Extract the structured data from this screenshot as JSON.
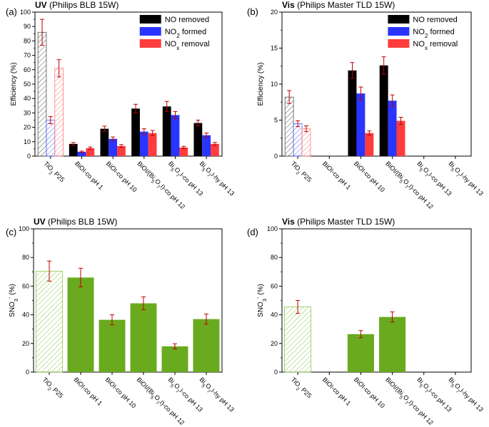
{
  "chart_data": [
    {
      "panel": "(a)",
      "type": "bar",
      "title_bold": "UV",
      "title_rest": " (Philips BLB 15W)",
      "ylabel": "Efficiency (%)",
      "ylim": [
        0,
        100
      ],
      "yticks": [
        0,
        10,
        20,
        30,
        40,
        50,
        60,
        70,
        80,
        90,
        100
      ],
      "categories": [
        "TiO2 P25",
        "BiOI-co pH 1",
        "BiOI-co pH 10",
        "BiOI/(Bi5O7I)-co pH 12",
        "Bi5O7I-co pH 13",
        "Bi5O7I-hy pH 13"
      ],
      "legend": [
        "NO  removed",
        "NO2 formed",
        "NOx removal"
      ],
      "series": [
        {
          "name": "NO removed",
          "color": "#000000",
          "values": [
            86,
            8.5,
            19,
            33,
            34.5,
            23
          ],
          "errors": [
            9,
            1,
            1.8,
            3,
            3.5,
            2
          ]
        },
        {
          "name": "NO2 formed",
          "color": "#2a35ff",
          "values": [
            25,
            3,
            12,
            17,
            28.5,
            14.5
          ],
          "errors": [
            2.5,
            0.5,
            1.3,
            2,
            2.5,
            1.5
          ]
        },
        {
          "name": "NOx removal",
          "color": "#ff3c3c",
          "values": [
            61,
            5.5,
            7,
            16,
            6,
            8.5
          ],
          "errors": [
            6,
            0.8,
            1,
            1.8,
            0.8,
            1
          ]
        }
      ]
    },
    {
      "panel": "(b)",
      "type": "bar",
      "title_bold": "Vis",
      "title_rest": " (Philips Master TLD 15W)",
      "ylabel": "Efficiency (%)",
      "ylim": [
        0,
        20
      ],
      "yticks": [
        0,
        5,
        10,
        15,
        20
      ],
      "categories": [
        "TiO2 P25",
        "BiOI-co pH 1",
        "BiOI-co pH 10",
        "BiOI/(Bi5O7I)-co pH 12",
        "Bi5O7I-co pH 13",
        "Bi5O7I-hy pH 13"
      ],
      "legend": [
        "NO  removed",
        "NO2 formed",
        "NOx removal"
      ],
      "series": [
        {
          "name": "NO removed",
          "color": "#000000",
          "values": [
            8.2,
            0,
            11.9,
            12.6,
            0,
            0
          ],
          "errors": [
            0.9,
            0,
            1.1,
            1.2,
            0,
            0
          ]
        },
        {
          "name": "NO2 formed",
          "color": "#2a35ff",
          "values": [
            4.5,
            0,
            8.7,
            7.7,
            0,
            0
          ],
          "errors": [
            0.4,
            0,
            0.9,
            0.8,
            0,
            0
          ]
        },
        {
          "name": "NOx removal",
          "color": "#ff3c3c",
          "values": [
            3.8,
            0,
            3.2,
            4.9,
            0,
            0
          ],
          "errors": [
            0.4,
            0,
            0.3,
            0.5,
            0,
            0
          ]
        }
      ]
    },
    {
      "panel": "(c)",
      "type": "bar",
      "title_bold": "UV",
      "title_rest": " (Philips BLB 15W)",
      "ylabel": "SNO3- (%)",
      "ylim": [
        0,
        100
      ],
      "yticks": [
        0,
        20,
        40,
        60,
        80,
        100
      ],
      "categories": [
        "TiO2 P25",
        "BiOI-co pH 1",
        "BiOI-co pH 10",
        "BiOI/(Bi5O7I)-co pH 12",
        "Bi5O7I-co pH 13",
        "Bi5O7I-hy pH 13"
      ],
      "color": "#6aaa1e",
      "values": [
        70.5,
        66,
        36.5,
        48,
        18,
        37
      ],
      "errors": [
        7,
        6.5,
        3.5,
        4.5,
        1.8,
        3.5
      ]
    },
    {
      "panel": "(d)",
      "type": "bar",
      "title_bold": "Vis",
      "title_rest": " (Philips Master TLD 15W)",
      "ylabel": "SNO3- (%)",
      "ylim": [
        0,
        100
      ],
      "yticks": [
        0,
        20,
        40,
        60,
        80,
        100
      ],
      "categories": [
        "TiO2 P25",
        "BiOI-co pH 1",
        "BiOI-co pH 10",
        "BiOI/(Bi5O7I)-co pH 12",
        "Bi5O7I-co pH 13",
        "Bi5O7I-hy pH 13"
      ],
      "color": "#6aaa1e",
      "values": [
        45.5,
        0,
        26.5,
        38.5,
        0,
        0
      ],
      "errors": [
        4.5,
        0,
        2.5,
        3.5,
        0,
        0
      ]
    }
  ]
}
